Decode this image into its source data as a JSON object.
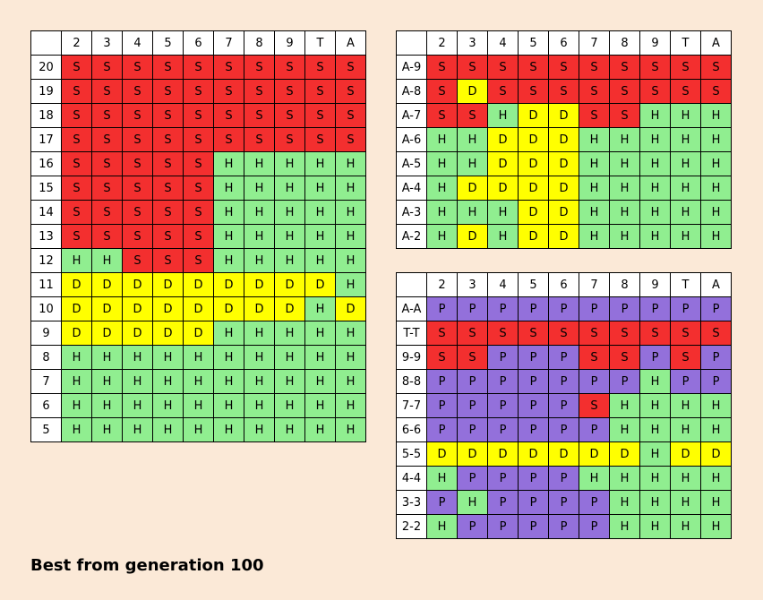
{
  "colors": {
    "S": "#f32f2f",
    "H": "#90ee90",
    "D": "#ffff00",
    "P": "#9370db",
    "background": "#fbe9d7"
  },
  "dealer_columns": [
    "2",
    "3",
    "4",
    "5",
    "6",
    "7",
    "8",
    "9",
    "T",
    "A"
  ],
  "hard_totals": {
    "rows": [
      {
        "label": "20",
        "actions": [
          "S",
          "S",
          "S",
          "S",
          "S",
          "S",
          "S",
          "S",
          "S",
          "S"
        ]
      },
      {
        "label": "19",
        "actions": [
          "S",
          "S",
          "S",
          "S",
          "S",
          "S",
          "S",
          "S",
          "S",
          "S"
        ]
      },
      {
        "label": "18",
        "actions": [
          "S",
          "S",
          "S",
          "S",
          "S",
          "S",
          "S",
          "S",
          "S",
          "S"
        ]
      },
      {
        "label": "17",
        "actions": [
          "S",
          "S",
          "S",
          "S",
          "S",
          "S",
          "S",
          "S",
          "S",
          "S"
        ]
      },
      {
        "label": "16",
        "actions": [
          "S",
          "S",
          "S",
          "S",
          "S",
          "H",
          "H",
          "H",
          "H",
          "H"
        ]
      },
      {
        "label": "15",
        "actions": [
          "S",
          "S",
          "S",
          "S",
          "S",
          "H",
          "H",
          "H",
          "H",
          "H"
        ]
      },
      {
        "label": "14",
        "actions": [
          "S",
          "S",
          "S",
          "S",
          "S",
          "H",
          "H",
          "H",
          "H",
          "H"
        ]
      },
      {
        "label": "13",
        "actions": [
          "S",
          "S",
          "S",
          "S",
          "S",
          "H",
          "H",
          "H",
          "H",
          "H"
        ]
      },
      {
        "label": "12",
        "actions": [
          "H",
          "H",
          "S",
          "S",
          "S",
          "H",
          "H",
          "H",
          "H",
          "H"
        ]
      },
      {
        "label": "11",
        "actions": [
          "D",
          "D",
          "D",
          "D",
          "D",
          "D",
          "D",
          "D",
          "D",
          "H"
        ]
      },
      {
        "label": "10",
        "actions": [
          "D",
          "D",
          "D",
          "D",
          "D",
          "D",
          "D",
          "D",
          "H",
          "D"
        ]
      },
      {
        "label": "9",
        "actions": [
          "D",
          "D",
          "D",
          "D",
          "D",
          "H",
          "H",
          "H",
          "H",
          "H"
        ]
      },
      {
        "label": "8",
        "actions": [
          "H",
          "H",
          "H",
          "H",
          "H",
          "H",
          "H",
          "H",
          "H",
          "H"
        ]
      },
      {
        "label": "7",
        "actions": [
          "H",
          "H",
          "H",
          "H",
          "H",
          "H",
          "H",
          "H",
          "H",
          "H"
        ]
      },
      {
        "label": "6",
        "actions": [
          "H",
          "H",
          "H",
          "H",
          "H",
          "H",
          "H",
          "H",
          "H",
          "H"
        ]
      },
      {
        "label": "5",
        "actions": [
          "H",
          "H",
          "H",
          "H",
          "H",
          "H",
          "H",
          "H",
          "H",
          "H"
        ]
      }
    ]
  },
  "soft_totals": {
    "rows": [
      {
        "label": "A-9",
        "actions": [
          "S",
          "S",
          "S",
          "S",
          "S",
          "S",
          "S",
          "S",
          "S",
          "S"
        ]
      },
      {
        "label": "A-8",
        "actions": [
          "S",
          "D",
          "S",
          "S",
          "S",
          "S",
          "S",
          "S",
          "S",
          "S"
        ]
      },
      {
        "label": "A-7",
        "actions": [
          "S",
          "S",
          "H",
          "D",
          "D",
          "S",
          "S",
          "H",
          "H",
          "H"
        ]
      },
      {
        "label": "A-6",
        "actions": [
          "H",
          "H",
          "D",
          "D",
          "D",
          "H",
          "H",
          "H",
          "H",
          "H"
        ]
      },
      {
        "label": "A-5",
        "actions": [
          "H",
          "H",
          "D",
          "D",
          "D",
          "H",
          "H",
          "H",
          "H",
          "H"
        ]
      },
      {
        "label": "A-4",
        "actions": [
          "H",
          "D",
          "D",
          "D",
          "D",
          "H",
          "H",
          "H",
          "H",
          "H"
        ]
      },
      {
        "label": "A-3",
        "actions": [
          "H",
          "H",
          "H",
          "D",
          "D",
          "H",
          "H",
          "H",
          "H",
          "H"
        ]
      },
      {
        "label": "A-2",
        "actions": [
          "H",
          "D",
          "H",
          "D",
          "D",
          "H",
          "H",
          "H",
          "H",
          "H"
        ]
      }
    ]
  },
  "pairs": {
    "rows": [
      {
        "label": "A-A",
        "actions": [
          "P",
          "P",
          "P",
          "P",
          "P",
          "P",
          "P",
          "P",
          "P",
          "P"
        ]
      },
      {
        "label": "T-T",
        "actions": [
          "S",
          "S",
          "S",
          "S",
          "S",
          "S",
          "S",
          "S",
          "S",
          "S"
        ]
      },
      {
        "label": "9-9",
        "actions": [
          "S",
          "S",
          "P",
          "P",
          "P",
          "S",
          "S",
          "P",
          "S",
          "P"
        ]
      },
      {
        "label": "8-8",
        "actions": [
          "P",
          "P",
          "P",
          "P",
          "P",
          "P",
          "P",
          "H",
          "P",
          "P"
        ]
      },
      {
        "label": "7-7",
        "actions": [
          "P",
          "P",
          "P",
          "P",
          "P",
          "S",
          "H",
          "H",
          "H",
          "H"
        ]
      },
      {
        "label": "6-6",
        "actions": [
          "P",
          "P",
          "P",
          "P",
          "P",
          "P",
          "H",
          "H",
          "H",
          "H"
        ]
      },
      {
        "label": "5-5",
        "actions": [
          "D",
          "D",
          "D",
          "D",
          "D",
          "D",
          "D",
          "H",
          "D",
          "D"
        ]
      },
      {
        "label": "4-4",
        "actions": [
          "H",
          "P",
          "P",
          "P",
          "P",
          "H",
          "H",
          "H",
          "H",
          "H"
        ]
      },
      {
        "label": "3-3",
        "actions": [
          "P",
          "H",
          "P",
          "P",
          "P",
          "P",
          "H",
          "H",
          "H",
          "H"
        ]
      },
      {
        "label": "2-2",
        "actions": [
          "H",
          "P",
          "P",
          "P",
          "P",
          "P",
          "H",
          "H",
          "H",
          "H"
        ]
      }
    ]
  },
  "caption": "Best from generation 100"
}
